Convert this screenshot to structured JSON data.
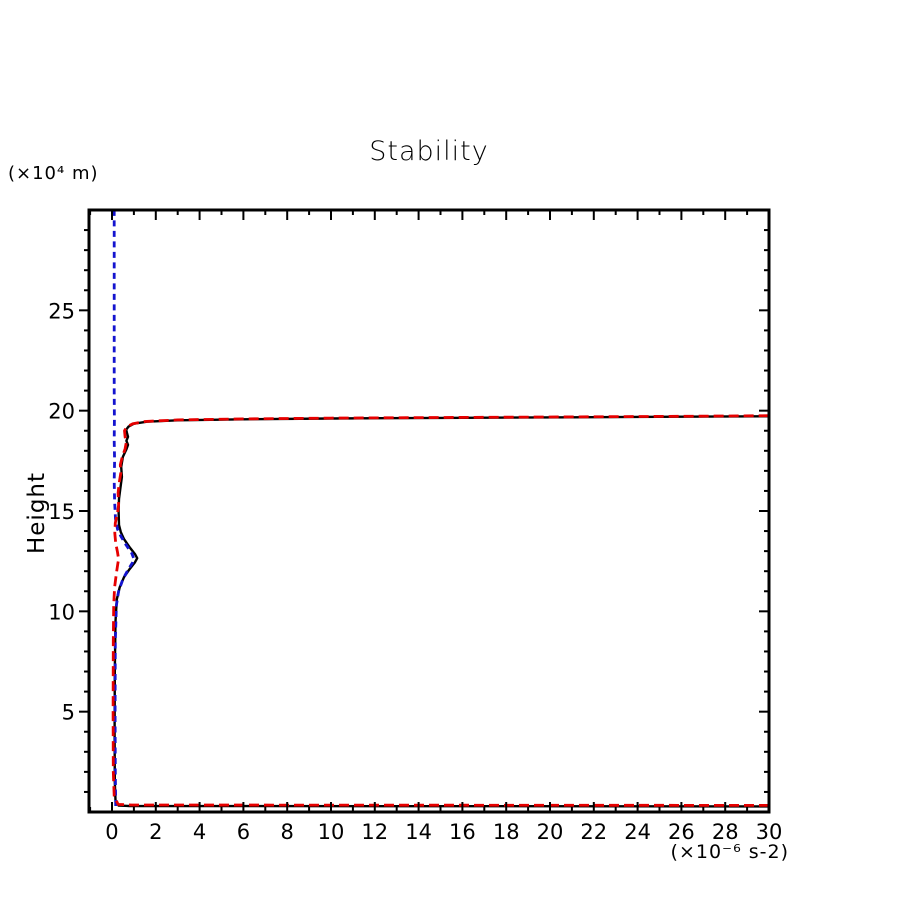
{
  "chart_data": {
    "type": "line",
    "title": "Stability",
    "ylabel": "Height",
    "y_scale_label": "(×10⁴ m)",
    "x_unit_label": "(×10⁻⁶ s-2)",
    "xlim": [
      -1.05,
      30
    ],
    "ylim": [
      0,
      30
    ],
    "x_major_ticks": [
      0,
      2,
      4,
      6,
      8,
      10,
      12,
      14,
      16,
      18,
      20,
      22,
      24,
      26,
      28,
      30
    ],
    "x_minor_step": 1,
    "y_major_ticks": [
      5,
      10,
      15,
      20,
      25
    ],
    "y_minor_step": 1,
    "grid": false,
    "legend": "none",
    "frame_color": "#000000",
    "series": [
      {
        "name": "profile-black-solid",
        "color": "#000000",
        "style": "solid",
        "width": 2.4,
        "points": [
          [
            30,
            0.28
          ],
          [
            0.8,
            0.3
          ],
          [
            0.3,
            0.32
          ],
          [
            0.16,
            0.6
          ],
          [
            0.13,
            1.5
          ],
          [
            0.12,
            4
          ],
          [
            0.13,
            7
          ],
          [
            0.16,
            9.5
          ],
          [
            0.22,
            10.6
          ],
          [
            0.35,
            11.2
          ],
          [
            0.55,
            11.7
          ],
          [
            0.8,
            12.1
          ],
          [
            1.05,
            12.45
          ],
          [
            1.15,
            12.65
          ],
          [
            1.05,
            12.85
          ],
          [
            0.8,
            13.2
          ],
          [
            0.55,
            13.6
          ],
          [
            0.4,
            13.95
          ],
          [
            0.32,
            14.3
          ],
          [
            0.3,
            15.0
          ],
          [
            0.32,
            15.6
          ],
          [
            0.38,
            16.1
          ],
          [
            0.45,
            16.7
          ],
          [
            0.42,
            17.2
          ],
          [
            0.5,
            17.7
          ],
          [
            0.65,
            18.05
          ],
          [
            0.73,
            18.3
          ],
          [
            0.66,
            18.5
          ],
          [
            0.73,
            18.7
          ],
          [
            0.68,
            18.9
          ],
          [
            0.65,
            19.05
          ],
          [
            0.75,
            19.2
          ],
          [
            1.0,
            19.35
          ],
          [
            1.6,
            19.45
          ],
          [
            3,
            19.52
          ],
          [
            6,
            19.57
          ],
          [
            10,
            19.61
          ],
          [
            15,
            19.64
          ],
          [
            21,
            19.67
          ],
          [
            26,
            19.7
          ],
          [
            30,
            19.72
          ]
        ]
      },
      {
        "name": "profile-blue-dashed",
        "color": "#1414cf",
        "style": "dashed",
        "dash": [
          6,
          4.5
        ],
        "width": 2.8,
        "points": [
          [
            0.17,
            0.3
          ],
          [
            0.15,
            2
          ],
          [
            0.14,
            5
          ],
          [
            0.15,
            8.5
          ],
          [
            0.2,
            10.3
          ],
          [
            0.3,
            11.0
          ],
          [
            0.5,
            11.6
          ],
          [
            0.75,
            12.1
          ],
          [
            0.95,
            12.45
          ],
          [
            1.0,
            12.62
          ],
          [
            0.9,
            12.9
          ],
          [
            0.65,
            13.3
          ],
          [
            0.4,
            13.75
          ],
          [
            0.25,
            14.1
          ],
          [
            0.16,
            14.6
          ],
          [
            0.12,
            15.5
          ],
          [
            0.1,
            16.5
          ],
          [
            0.12,
            17.5
          ],
          [
            0.1,
            18.5
          ],
          [
            0.11,
            19.5
          ],
          [
            0.1,
            21
          ],
          [
            0.1,
            24
          ],
          [
            0.1,
            27
          ],
          [
            0.1,
            30
          ]
        ]
      },
      {
        "name": "profile-red-dashed",
        "color": "#e60000",
        "style": "dashed",
        "dash": [
          10,
          5
        ],
        "width": 2.8,
        "points": [
          [
            30,
            0.33
          ],
          [
            0.9,
            0.35
          ],
          [
            0.28,
            0.38
          ],
          [
            0.1,
            0.8
          ],
          [
            0.06,
            2
          ],
          [
            0.05,
            5
          ],
          [
            0.06,
            8.5
          ],
          [
            0.08,
            10.3
          ],
          [
            0.12,
            11.2
          ],
          [
            0.2,
            11.9
          ],
          [
            0.27,
            12.4
          ],
          [
            0.3,
            12.6
          ],
          [
            0.25,
            12.95
          ],
          [
            0.17,
            13.4
          ],
          [
            0.13,
            13.9
          ],
          [
            0.15,
            14.4
          ],
          [
            0.25,
            14.9
          ],
          [
            0.3,
            15.3
          ],
          [
            0.28,
            15.9
          ],
          [
            0.33,
            16.4
          ],
          [
            0.4,
            16.9
          ],
          [
            0.38,
            17.3
          ],
          [
            0.47,
            17.7
          ],
          [
            0.6,
            18.1
          ],
          [
            0.65,
            18.4
          ],
          [
            0.6,
            18.7
          ],
          [
            0.57,
            19.0
          ],
          [
            0.68,
            19.2
          ],
          [
            0.95,
            19.35
          ],
          [
            1.5,
            19.46
          ],
          [
            3,
            19.54
          ],
          [
            6,
            19.59
          ],
          [
            10,
            19.63
          ],
          [
            15,
            19.66
          ],
          [
            21,
            19.69
          ],
          [
            26,
            19.72
          ],
          [
            30,
            19.75
          ]
        ]
      }
    ]
  }
}
